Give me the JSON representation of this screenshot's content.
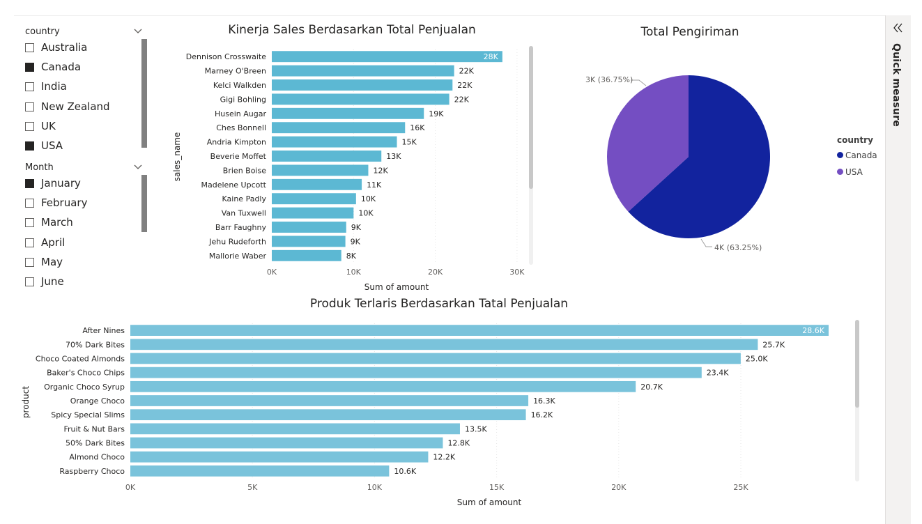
{
  "slicers": {
    "country": {
      "title": "country",
      "items": [
        {
          "label": "Australia",
          "checked": false
        },
        {
          "label": "Canada",
          "checked": true
        },
        {
          "label": "India",
          "checked": false
        },
        {
          "label": "New Zealand",
          "checked": false
        },
        {
          "label": "UK",
          "checked": false
        },
        {
          "label": "USA",
          "checked": true
        }
      ]
    },
    "month": {
      "title": "Month",
      "items": [
        {
          "label": "January",
          "checked": true
        },
        {
          "label": "February",
          "checked": false
        },
        {
          "label": "March",
          "checked": false
        },
        {
          "label": "April",
          "checked": false
        },
        {
          "label": "May",
          "checked": false
        },
        {
          "label": "June",
          "checked": false
        }
      ]
    }
  },
  "side_pane": {
    "label": "Quick measure",
    "collapse_icon": "double-chevron-left-icon"
  },
  "colors": {
    "bar": "#5cb8d3",
    "bar2": "#7ac3db",
    "canada": "#12239e",
    "usa": "#744ec2"
  },
  "chart_data": [
    {
      "type": "bar",
      "orientation": "horizontal",
      "title": "Kinerja Sales Berdasarkan Total Penjualan",
      "xlabel": "Sum of amount",
      "ylabel": "sales_name",
      "xlim": [
        0,
        30000
      ],
      "xticks": [
        "0K",
        "10K",
        "20K",
        "30K"
      ],
      "categories": [
        "Dennison Crosswaite",
        "Marney O'Breen",
        "Kelci Walkden",
        "Gigi Bohling",
        "Husein Augar",
        "Ches Bonnell",
        "Andria Kimpton",
        "Beverie Moffet",
        "Brien Boise",
        "Madelene Upcott",
        "Kaine Padly",
        "Van Tuxwell",
        "Barr Faughny",
        "Jehu Rudeforth",
        "Mallorie Waber"
      ],
      "values": [
        28200,
        22300,
        22100,
        21700,
        18600,
        16300,
        15300,
        13400,
        11800,
        11000,
        10300,
        10000,
        9100,
        9000,
        8500
      ],
      "data_labels": [
        "28K",
        "22K",
        "22K",
        "22K",
        "19K",
        "16K",
        "15K",
        "13K",
        "12K",
        "11K",
        "10K",
        "10K",
        "9K",
        "9K",
        "8K"
      ]
    },
    {
      "type": "pie",
      "title": "Total Pengiriman",
      "legend_title": "country",
      "legend_position": "right",
      "slices": [
        {
          "name": "Canada",
          "value": 63.25,
          "label": "4K (63.25%)"
        },
        {
          "name": "USA",
          "value": 36.75,
          "label": "3K (36.75%)"
        }
      ]
    },
    {
      "type": "bar",
      "orientation": "horizontal",
      "title": "Produk Terlaris Berdasarkan Tatal Penjualan",
      "xlabel": "Sum of amount",
      "ylabel": "product",
      "xlim": [
        0,
        28600
      ],
      "xticks": [
        "0K",
        "5K",
        "10K",
        "15K",
        "20K",
        "25K"
      ],
      "categories": [
        "After Nines",
        "70% Dark Bites",
        "Choco Coated Almonds",
        "Baker's Choco Chips",
        "Organic Choco Syrup",
        "Orange Choco",
        "Spicy Special Slims",
        "Fruit & Nut Bars",
        "50% Dark Bites",
        "Almond Choco",
        "Raspberry Choco"
      ],
      "values": [
        28600,
        25700,
        25000,
        23400,
        20700,
        16300,
        16200,
        13500,
        12800,
        12200,
        10600
      ],
      "data_labels": [
        "28.6K",
        "25.7K",
        "25.0K",
        "23.4K",
        "20.7K",
        "16.3K",
        "16.2K",
        "13.5K",
        "12.8K",
        "12.2K",
        "10.6K"
      ]
    }
  ]
}
